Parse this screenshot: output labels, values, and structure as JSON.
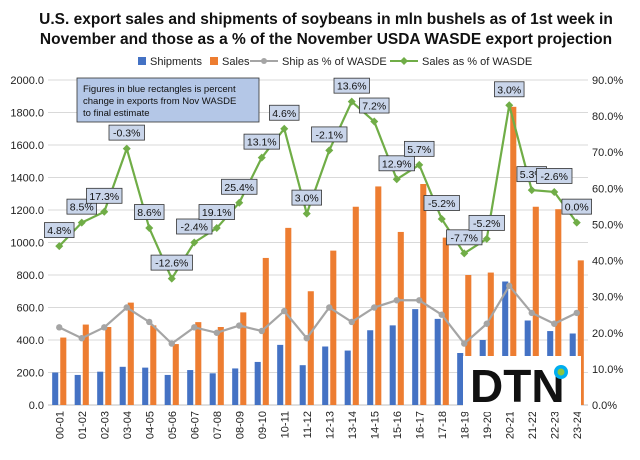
{
  "chart_data": {
    "type": "bar",
    "title_lines": [
      "U.S. export sales and shipments of soybeans in mln bushels as of 1st week in",
      "November and those as a % of the November USDA WASDE export projection"
    ],
    "categories": [
      "00-01",
      "01-02",
      "02-03",
      "03-04",
      "04-05",
      "05-06",
      "06-07",
      "07-08",
      "08-09",
      "09-10",
      "10-11",
      "11-12",
      "12-13",
      "13-14",
      "14-15",
      "15-16",
      "16-17",
      "17-18",
      "18-19",
      "19-20",
      "20-21",
      "21-22",
      "22-23",
      "23-24"
    ],
    "y_left": {
      "min": 0,
      "max": 2000,
      "step": 200,
      "tick_labels": [
        "0.0",
        "200.0",
        "400.0",
        "600.0",
        "800.0",
        "1000.0",
        "1200.0",
        "1400.0",
        "1600.0",
        "1800.0",
        "2000.0"
      ]
    },
    "y_right": {
      "min": 0,
      "max": 90,
      "step": 10,
      "tick_labels": [
        "0.0%",
        "10.0%",
        "20.0%",
        "30.0%",
        "40.0%",
        "50.0%",
        "60.0%",
        "70.0%",
        "80.0%",
        "90.0%"
      ]
    },
    "series": [
      {
        "name": "Shipments",
        "kind": "bar",
        "axis": "left",
        "color": "#4472C4",
        "values": [
          200,
          185,
          205,
          235,
          230,
          185,
          215,
          195,
          225,
          265,
          370,
          245,
          360,
          335,
          460,
          490,
          590,
          530,
          320,
          400,
          760,
          520,
          455,
          440
        ]
      },
      {
        "name": "Sales",
        "kind": "bar",
        "axis": "left",
        "color": "#ED7D31",
        "values": [
          415,
          495,
          480,
          630,
          490,
          375,
          510,
          480,
          570,
          905,
          1090,
          700,
          950,
          1220,
          1345,
          1065,
          1360,
          1030,
          800,
          815,
          1835,
          1220,
          1205,
          890
        ]
      },
      {
        "name": "Ship as % of WASDE",
        "kind": "line",
        "axis": "right",
        "color": "#A5A5A5",
        "values": [
          21.5,
          18.5,
          21.5,
          27,
          23,
          17,
          21.5,
          20,
          22,
          20.5,
          26,
          18.5,
          27,
          23,
          27,
          29,
          29,
          25,
          17,
          22.5,
          33,
          25.5,
          22.5,
          25.5
        ]
      },
      {
        "name": "Sales as % of WASDE",
        "kind": "line",
        "axis": "right",
        "color": "#70AD47",
        "values": [
          44,
          50.5,
          53.5,
          71,
          49,
          35,
          45,
          49,
          56,
          68.5,
          76.5,
          53,
          70.5,
          84,
          78.5,
          62.5,
          66.5,
          51.5,
          42,
          46,
          83,
          59.5,
          59,
          50.5
        ]
      }
    ],
    "point_labels": [
      "4.8%",
      "8.5%",
      "17.3%",
      "-0.3%",
      "8.6%",
      "-12.6%",
      "-2.4%",
      "19.1%",
      "25.4%",
      "13.1%",
      "4.6%",
      "3.0%",
      "-2.1%",
      "13.6%",
      "7.2%",
      "12.9%",
      "5.7%",
      "-5.2%",
      "-7.7%",
      "-5.2%",
      "3.0%",
      "5.3%",
      "-2.6%",
      "0.0%"
    ],
    "annotation": [
      "Figures in blue rectangles is percent",
      "change in exports from Nov WASDE",
      "to final estimate"
    ],
    "legend_position": "top"
  },
  "logo": {
    "text": "DTN"
  },
  "colors": {
    "grid": "#D9D9D9",
    "label_box_fill": "#C9D5EA",
    "label_box_stroke": "#333333",
    "note_box_fill": "#B4C7E7",
    "logo_accent": "#00AEEF"
  }
}
